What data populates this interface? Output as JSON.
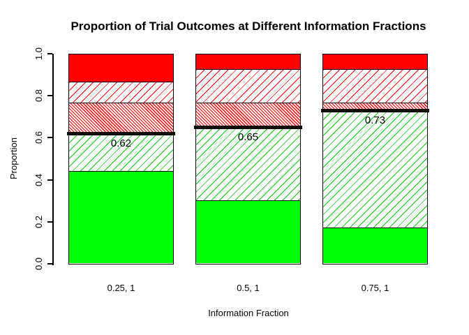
{
  "chart_data": {
    "type": "bar",
    "stacked": true,
    "title": "Proportion of Trial Outcomes at Different Information Fractions",
    "xlabel": "Information Fraction",
    "ylabel": "Proportion",
    "ylim": [
      0,
      1
    ],
    "grid": false,
    "legend": false,
    "y_ticks": [
      "0.0",
      "0.2",
      "0.4",
      "0.6",
      "0.8",
      "1.0"
    ],
    "categories": [
      "0.25, 1",
      "0.5, 1",
      "0.75, 1"
    ],
    "series": [
      {
        "name": "solid-green",
        "values": [
          0.44,
          0.3,
          0.17
        ],
        "fill": {
          "style": "solid",
          "color": "#00ff00"
        }
      },
      {
        "name": "hatched-green",
        "values": [
          0.18,
          0.35,
          0.56
        ],
        "fill": {
          "style": "hatch",
          "line_color": "#00cc00",
          "angle": 135,
          "period": 8,
          "line_width": 1
        }
      },
      {
        "name": "hatched-red-dense",
        "values": [
          0.15,
          0.12,
          0.04
        ],
        "fill": {
          "style": "hatch",
          "line_color": "#ff0000",
          "angle": 45,
          "period": 3.2,
          "line_width": 1.2
        }
      },
      {
        "name": "hatched-red-sparse",
        "values": [
          0.1,
          0.16,
          0.16
        ],
        "fill": {
          "style": "hatch",
          "line_color": "#ff0000",
          "angle": 135,
          "period": 8,
          "line_width": 1
        }
      },
      {
        "name": "solid-red",
        "values": [
          0.13,
          0.07,
          0.07
        ],
        "fill": {
          "style": "solid",
          "color": "#ff0000"
        }
      }
    ],
    "threshold_lines": {
      "values": [
        0.62,
        0.65,
        0.73
      ],
      "labels": [
        "0.62",
        "0.65",
        "0.73"
      ],
      "color": "#000000"
    },
    "colors": {
      "bar_border": "#000000",
      "axis": "#000000",
      "text": "#000000",
      "background": "#ffffff"
    }
  }
}
